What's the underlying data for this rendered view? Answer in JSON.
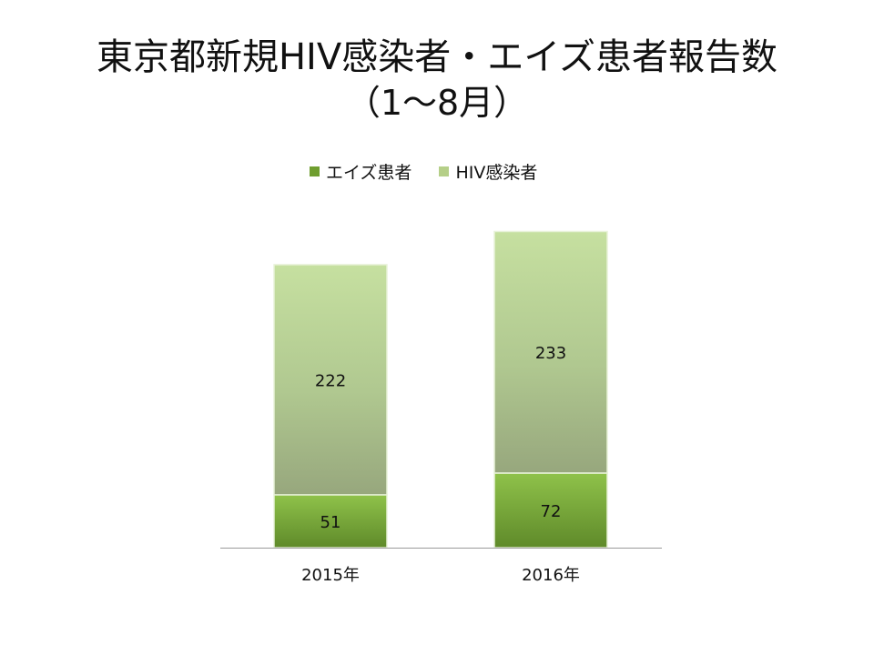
{
  "title": "東京都新規HIV感染者・エイズ患者報告数",
  "subtitle": "（1～8月）",
  "chart_data": {
    "type": "bar",
    "stacked": true,
    "categories": [
      "2015年",
      "2016年"
    ],
    "series": [
      {
        "name": "エイズ患者",
        "values": [
          51,
          72
        ],
        "color": "#6f9e2f"
      },
      {
        "name": "HIV感染者",
        "values": [
          222,
          233
        ],
        "color": "#b5cf88"
      }
    ],
    "ylim": [
      0,
      305
    ],
    "grid": false,
    "legend": "top"
  }
}
